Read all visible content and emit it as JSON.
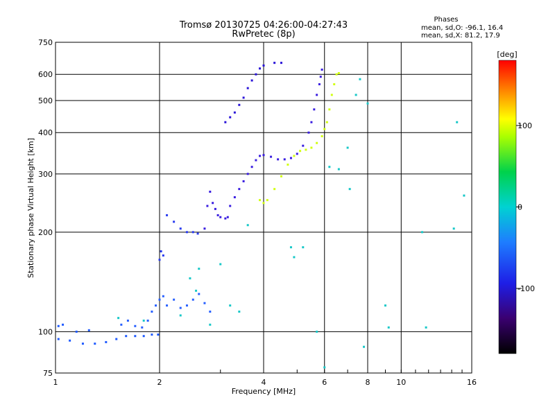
{
  "chart_data": {
    "type": "scatter",
    "title": "Tromsø 20130725 04:26:00-04:27:43",
    "subtitle": "RwPretec (8p)",
    "stats": {
      "heading": "Phases",
      "line1": "mean, sd,O: -96.1, 16.4",
      "line2": "mean, sd,X:  81.2, 17.9"
    },
    "xlabel": "Frequency [MHz]",
    "ylabel": "Stationary phase Virtual Height [km]",
    "x_scale": "log",
    "y_scale": "log",
    "xlim": [
      1,
      16
    ],
    "ylim": [
      75,
      750
    ],
    "x_ticks": [
      {
        "v": 1,
        "label": "1"
      },
      {
        "v": 2,
        "label": "2"
      },
      {
        "v": 4,
        "label": "4"
      },
      {
        "v": 6,
        "label": "6"
      },
      {
        "v": 8,
        "label": "8"
      },
      {
        "v": 10,
        "label": "10"
      },
      {
        "v": 16,
        "label": "16"
      }
    ],
    "y_ticks": [
      {
        "v": 75,
        "label": "75"
      },
      {
        "v": 100,
        "label": "100"
      },
      {
        "v": 200,
        "label": "200"
      },
      {
        "v": 300,
        "label": "300"
      },
      {
        "v": 400,
        "label": "400"
      },
      {
        "v": 500,
        "label": "500"
      },
      {
        "v": 600,
        "label": "600"
      },
      {
        "v": 750,
        "label": "750"
      }
    ],
    "grid": true,
    "colorbar": {
      "label": "[deg]",
      "range": [
        -180,
        180
      ],
      "ticks": [
        {
          "v": 100,
          "label": "100"
        },
        {
          "v": 0,
          "label": "0"
        },
        {
          "v": -100,
          "label": "-100"
        }
      ]
    },
    "series": [
      {
        "points": [
          [
            1.02,
            95
          ],
          [
            1.1,
            94
          ],
          [
            1.2,
            92
          ],
          [
            1.3,
            92
          ],
          [
            1.4,
            93
          ],
          [
            1.5,
            95
          ],
          [
            1.6,
            97
          ],
          [
            1.7,
            97
          ],
          [
            1.8,
            97
          ],
          [
            1.9,
            98
          ],
          [
            1.98,
            98
          ],
          [
            1.02,
            104
          ],
          [
            1.05,
            105
          ],
          [
            1.15,
            100
          ],
          [
            1.25,
            101
          ]
        ]
      },
      {
        "points": [
          [
            1.55,
            105
          ],
          [
            1.62,
            108
          ],
          [
            1.7,
            104
          ],
          [
            1.78,
            103
          ],
          [
            1.85,
            108
          ],
          [
            1.9,
            115
          ],
          [
            1.95,
            120
          ],
          [
            2.0,
            125
          ],
          [
            2.05,
            128
          ],
          [
            2.1,
            120
          ],
          [
            2.2,
            125
          ],
          [
            2.3,
            118
          ],
          [
            2.4,
            120
          ],
          [
            2.5,
            125
          ],
          [
            2.6,
            130
          ],
          [
            2.7,
            122
          ],
          [
            2.8,
            115
          ]
        ]
      },
      {
        "points": [
          [
            2.0,
            165
          ],
          [
            2.02,
            175
          ],
          [
            2.05,
            170
          ],
          [
            2.1,
            225
          ],
          [
            2.2,
            215
          ],
          [
            2.3,
            205
          ],
          [
            2.4,
            200
          ],
          [
            2.5,
            200
          ],
          [
            2.58,
            198
          ]
        ]
      },
      {
        "points": [
          [
            2.7,
            205
          ],
          [
            2.75,
            240
          ],
          [
            2.8,
            265
          ],
          [
            2.85,
            245
          ],
          [
            2.9,
            235
          ],
          [
            2.95,
            225
          ],
          [
            3.0,
            222
          ],
          [
            3.1,
            220
          ],
          [
            3.15,
            222
          ],
          [
            3.2,
            240
          ],
          [
            3.3,
            255
          ],
          [
            3.4,
            270
          ],
          [
            3.5,
            285
          ],
          [
            3.6,
            300
          ],
          [
            3.7,
            315
          ],
          [
            3.8,
            330
          ],
          [
            3.9,
            340
          ],
          [
            4.0,
            342
          ],
          [
            4.2,
            338
          ],
          [
            4.4,
            332
          ],
          [
            4.6,
            332
          ],
          [
            4.8,
            335
          ],
          [
            5.0,
            345
          ],
          [
            5.2,
            365
          ],
          [
            5.4,
            400
          ],
          [
            5.5,
            430
          ],
          [
            5.6,
            470
          ],
          [
            5.7,
            520
          ],
          [
            5.8,
            560
          ],
          [
            5.85,
            590
          ],
          [
            5.9,
            620
          ]
        ]
      },
      {
        "points": [
          [
            3.1,
            430
          ],
          [
            3.2,
            445
          ],
          [
            3.3,
            460
          ],
          [
            3.4,
            485
          ],
          [
            3.5,
            510
          ],
          [
            3.6,
            545
          ],
          [
            3.7,
            575
          ],
          [
            3.8,
            600
          ],
          [
            3.9,
            625
          ],
          [
            4.0,
            638
          ],
          [
            4.3,
            650
          ],
          [
            4.5,
            650
          ]
        ]
      },
      {
        "points": [
          [
            3.9,
            250
          ],
          [
            4.0,
            245
          ],
          [
            4.1,
            250
          ],
          [
            4.3,
            270
          ],
          [
            4.5,
            295
          ],
          [
            4.7,
            320
          ],
          [
            4.9,
            340
          ],
          [
            5.1,
            352
          ],
          [
            5.3,
            355
          ],
          [
            5.5,
            360
          ],
          [
            5.7,
            372
          ],
          [
            5.9,
            390
          ],
          [
            6.0,
            410
          ],
          [
            6.1,
            430
          ],
          [
            6.2,
            470
          ],
          [
            6.3,
            520
          ],
          [
            6.4,
            560
          ],
          [
            6.5,
            600
          ],
          [
            6.6,
            605
          ]
        ]
      },
      {
        "points": [
          [
            1.52,
            110
          ],
          [
            1.8,
            108
          ],
          [
            2.3,
            112
          ],
          [
            2.45,
            145
          ],
          [
            2.55,
            133
          ],
          [
            2.6,
            155
          ],
          [
            2.8,
            105
          ],
          [
            3.0,
            160
          ],
          [
            3.2,
            120
          ],
          [
            3.4,
            115
          ],
          [
            3.6,
            210
          ],
          [
            4.8,
            180
          ],
          [
            4.9,
            168
          ],
          [
            5.2,
            180
          ],
          [
            5.7,
            100
          ],
          [
            6.2,
            315
          ],
          [
            6.6,
            310
          ],
          [
            7.0,
            360
          ],
          [
            7.1,
            270
          ],
          [
            7.4,
            520
          ],
          [
            7.6,
            580
          ],
          [
            8.0,
            490
          ],
          [
            9.0,
            120
          ],
          [
            9.2,
            103
          ],
          [
            11.8,
            103
          ],
          [
            14.5,
            430
          ],
          [
            15.2,
            258
          ],
          [
            14.2,
            205
          ],
          [
            11.5,
            200
          ],
          [
            7.8,
            90
          ],
          [
            6.0,
            78
          ]
        ]
      }
    ]
  }
}
